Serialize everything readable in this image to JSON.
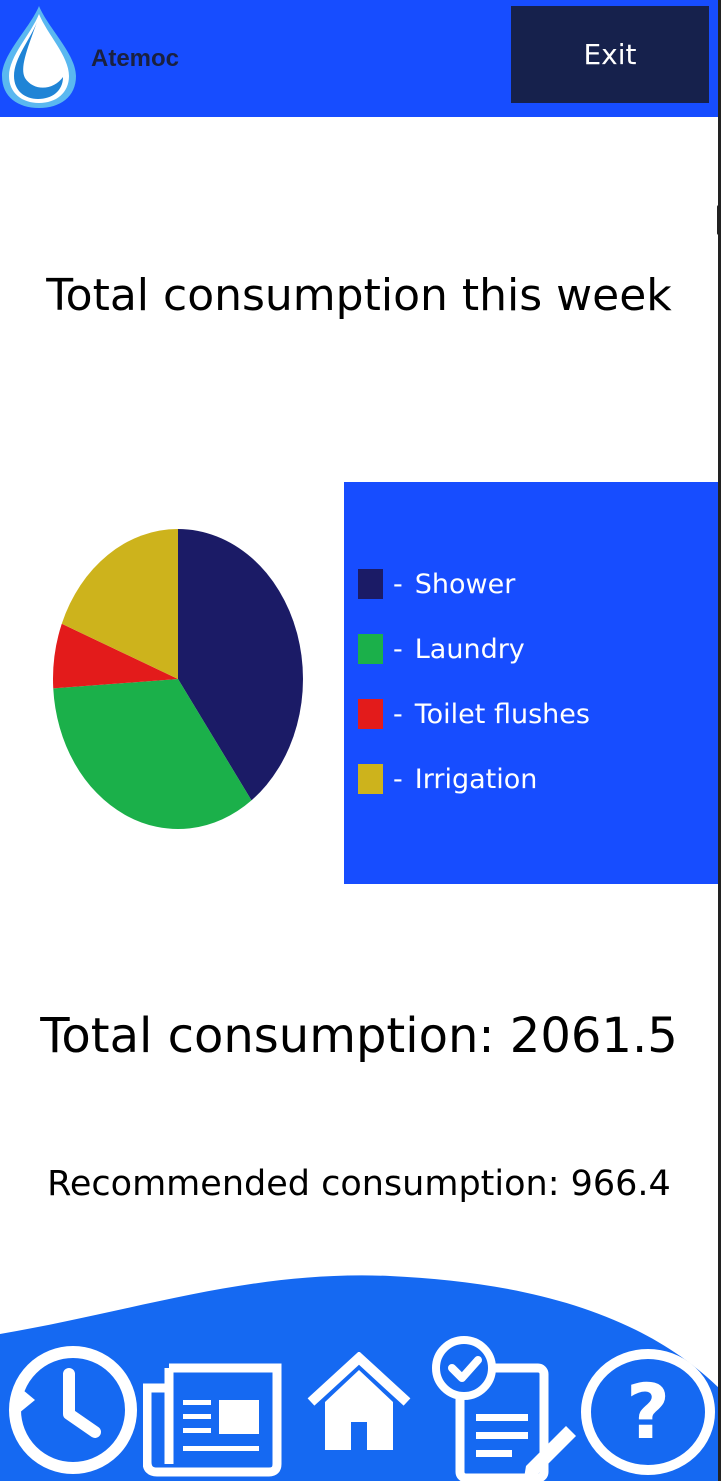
{
  "header": {
    "app_name": "Atemoc",
    "exit_label": "Exit"
  },
  "colors": {
    "brand_blue": "#174dff",
    "exit_bg": "#16214c",
    "shower": "#1b1b66",
    "laundry": "#1bb04a",
    "toilet": "#e31b1b",
    "irrigation": "#cdb31c"
  },
  "chart_data": {
    "type": "pie",
    "title": "Total consumption this week",
    "legend_position": "right",
    "slices": [
      {
        "label": "Shower",
        "value": 40,
        "color": "#1b1b66"
      },
      {
        "label": "Laundry",
        "value": 34,
        "color": "#1bb04a"
      },
      {
        "label": "Toilet flushes",
        "value": 7,
        "color": "#e31b1b"
      },
      {
        "label": "Irrigation",
        "value": 19,
        "color": "#cdb31c"
      }
    ]
  },
  "legend": {
    "separator": "-"
  },
  "totals": {
    "total_text": "Total consumption: 2061.5",
    "recommended_text": "Recommended consumption: 966.4"
  },
  "nav": {
    "icons": [
      "history-clock-icon",
      "news-icon",
      "home-icon",
      "tasks-checklist-icon",
      "help-question-icon"
    ]
  }
}
